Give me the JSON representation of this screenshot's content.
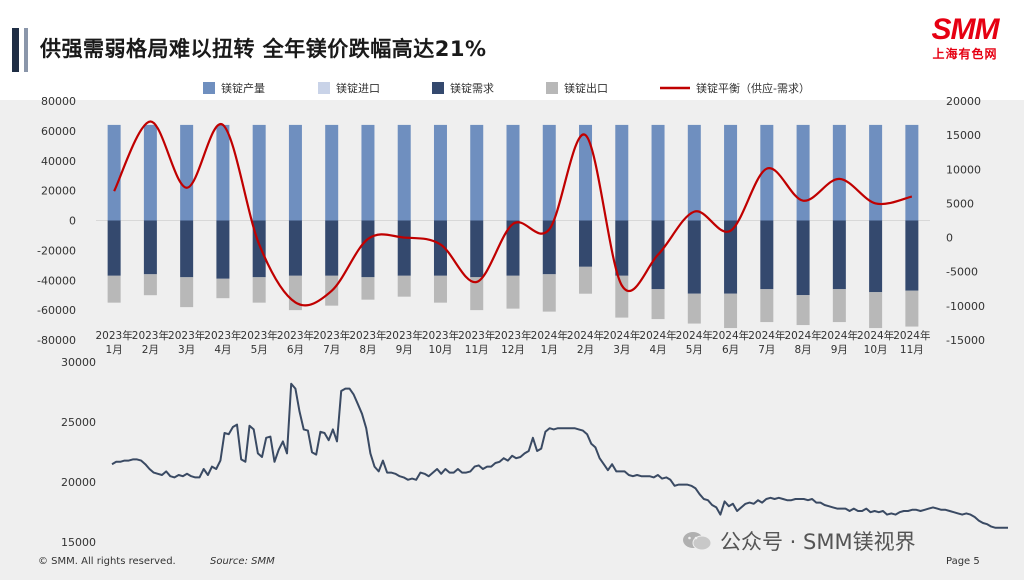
{
  "title": "供强需弱格局难以扭转 全年镁价跌幅高达21%",
  "logo": {
    "main": "SMM",
    "sub": "上海有色网"
  },
  "footer": {
    "copyright": "© SMM. All rights reserved.",
    "source": "Source:  SMM",
    "page": "Page 5"
  },
  "watermark": {
    "account": "公众号 · SMM镁视界"
  },
  "colors": {
    "production": "#6f8fbf",
    "import": "#c9d3e8",
    "demand": "#34496e",
    "export": "#b8b8b8",
    "balance": "#c00000",
    "price": "#3a4a63"
  },
  "chart_data": [
    {
      "type": "bar",
      "legend": [
        "镁锭产量",
        "镁锭进口",
        "镁锭需求",
        "镁锭出口",
        "镁锭平衡（供应-需求）"
      ],
      "legend_position": "top",
      "categories": [
        "2023年1月",
        "2023年2月",
        "2023年3月",
        "2023年4月",
        "2023年5月",
        "2023年6月",
        "2023年7月",
        "2023年8月",
        "2023年9月",
        "2023年10月",
        "2023年11月",
        "2023年12月",
        "2024年1月",
        "2024年2月",
        "2024年3月",
        "2024年4月",
        "2024年5月",
        "2024年6月",
        "2024年7月",
        "2024年8月",
        "2024年9月",
        "2024年10月",
        "2024年11月"
      ],
      "category_labels_top": [
        "2023年",
        "2023年",
        "2023年",
        "2023年",
        "2023年",
        "2023年",
        "2023年",
        "2023年",
        "2023年",
        "2023年",
        "2023年",
        "2023年",
        "2024年",
        "2024年",
        "2024年",
        "2024年",
        "2024年",
        "2024年",
        "2024年",
        "2024年",
        "2024年",
        "2024年",
        "2024年"
      ],
      "category_labels_bottom": [
        "1月",
        "2月",
        "3月",
        "4月",
        "5月",
        "6月",
        "7月",
        "8月",
        "9月",
        "10月",
        "11月",
        "12月",
        "1月",
        "2月",
        "3月",
        "4月",
        "5月",
        "6月",
        "7月",
        "8月",
        "9月",
        "10月",
        "11月"
      ],
      "series": [
        {
          "name": "镁锭产量",
          "axis": "left",
          "values": [
            64000,
            64000,
            64000,
            64000,
            64000,
            64000,
            64000,
            64000,
            64000,
            64000,
            64000,
            64000,
            64000,
            64000,
            64000,
            64000,
            64000,
            64000,
            64000,
            64000,
            64000,
            64000,
            64000
          ]
        },
        {
          "name": "镁锭进口",
          "axis": "left",
          "values": [
            0,
            0,
            0,
            0,
            0,
            0,
            0,
            0,
            0,
            0,
            0,
            0,
            0,
            0,
            0,
            0,
            0,
            0,
            0,
            0,
            0,
            0,
            0
          ]
        },
        {
          "name": "镁锭需求",
          "axis": "left",
          "values": [
            -37000,
            -36000,
            -38000,
            -39000,
            -38000,
            -37000,
            -37000,
            -38000,
            -37000,
            -37000,
            -38000,
            -37000,
            -36000,
            -31000,
            -37000,
            -46000,
            -49000,
            -49000,
            -46000,
            -50000,
            -46000,
            -48000,
            -47000
          ]
        },
        {
          "name": "镁锭出口",
          "axis": "left",
          "values": [
            -18000,
            -14000,
            -20000,
            -13000,
            -17000,
            -23000,
            -20000,
            -15000,
            -14000,
            -18000,
            -22000,
            -22000,
            -25000,
            -18000,
            -28000,
            -20000,
            -20000,
            -23000,
            -22000,
            -20000,
            -22000,
            -24000,
            -24000
          ]
        },
        {
          "name": "镁锭平衡（供应-需求）",
          "axis": "right",
          "type": "line",
          "values": [
            6800,
            17000,
            7300,
            16500,
            -1000,
            -9500,
            -7800,
            -200,
            0,
            -1000,
            -6500,
            2000,
            1200,
            15000,
            -7000,
            -2500,
            3800,
            1000,
            10100,
            5400,
            8600,
            5000,
            6000
          ]
        }
      ],
      "ylim_left": [
        -80000,
        80000
      ],
      "yticks_left": [
        "80000",
        "60000",
        "40000",
        "20000",
        "0",
        "-20000",
        "-40000",
        "-60000",
        "-80000"
      ],
      "ylim_right": [
        -15000,
        20000
      ],
      "yticks_right": [
        "20000",
        "15000",
        "10000",
        "5000",
        "0",
        "-5000",
        "-10000",
        "-15000"
      ]
    },
    {
      "type": "line",
      "series_color": "#3a4a63",
      "ylim": [
        15000,
        30000
      ],
      "yticks": [
        "30000",
        "25000",
        "20000",
        "15000"
      ],
      "values": [
        21400,
        21600,
        21600,
        21700,
        21700,
        21800,
        21800,
        21700,
        21400,
        21000,
        20700,
        20600,
        20500,
        20800,
        20400,
        20300,
        20500,
        20400,
        20600,
        20400,
        20300,
        20300,
        21000,
        20500,
        21200,
        21000,
        21700,
        24000,
        23900,
        24500,
        24700,
        21800,
        21600,
        24600,
        24300,
        22300,
        22000,
        23600,
        23700,
        21600,
        22600,
        23300,
        22300,
        28100,
        27700,
        25800,
        24300,
        24200,
        22400,
        22200,
        24100,
        24000,
        23400,
        24300,
        23300,
        27500,
        27700,
        27700,
        27200,
        26400,
        25600,
        24400,
        22300,
        21200,
        20800,
        21700,
        20700,
        20700,
        20600,
        20400,
        20300,
        20100,
        20200,
        20100,
        20700,
        20600,
        20400,
        20700,
        21000,
        20600,
        21000,
        20700,
        20700,
        21000,
        20700,
        20700,
        20800,
        21200,
        21300,
        21000,
        21200,
        21200,
        21500,
        21600,
        21900,
        21700,
        22100,
        21900,
        22000,
        22300,
        22500,
        23600,
        22500,
        22700,
        24100,
        24400,
        24300,
        24400,
        24400,
        24400,
        24400,
        24400,
        24300,
        24200,
        23900,
        23100,
        22800,
        21900,
        21400,
        20900,
        21400,
        20800,
        20800,
        20800,
        20500,
        20400,
        20500,
        20400,
        20400,
        20400,
        20300,
        20500,
        20200,
        20300,
        20100,
        19600,
        19700,
        19700,
        19700,
        19600,
        19400,
        18900,
        18500,
        18400,
        18000,
        17800,
        17200,
        18300,
        17900,
        18100,
        17500,
        17800,
        18100,
        18200,
        18100,
        18400,
        18200,
        18500,
        18600,
        18500,
        18600,
        18500,
        18400,
        18400,
        18500,
        18500,
        18500,
        18400,
        18500,
        18200,
        18200,
        18000,
        17900,
        17800,
        17700,
        17700,
        17700,
        17500,
        17700,
        17500,
        17500,
        17700,
        17400,
        17500,
        17400,
        17500,
        17200,
        17300,
        17200,
        17400,
        17500,
        17500,
        17600,
        17600,
        17500,
        17600,
        17700,
        17800,
        17700,
        17600,
        17600,
        17500,
        17400,
        17300,
        17200,
        17300,
        17200,
        17000,
        16700,
        16500,
        16400,
        16200,
        16100,
        16100,
        16100,
        16100
      ]
    }
  ]
}
